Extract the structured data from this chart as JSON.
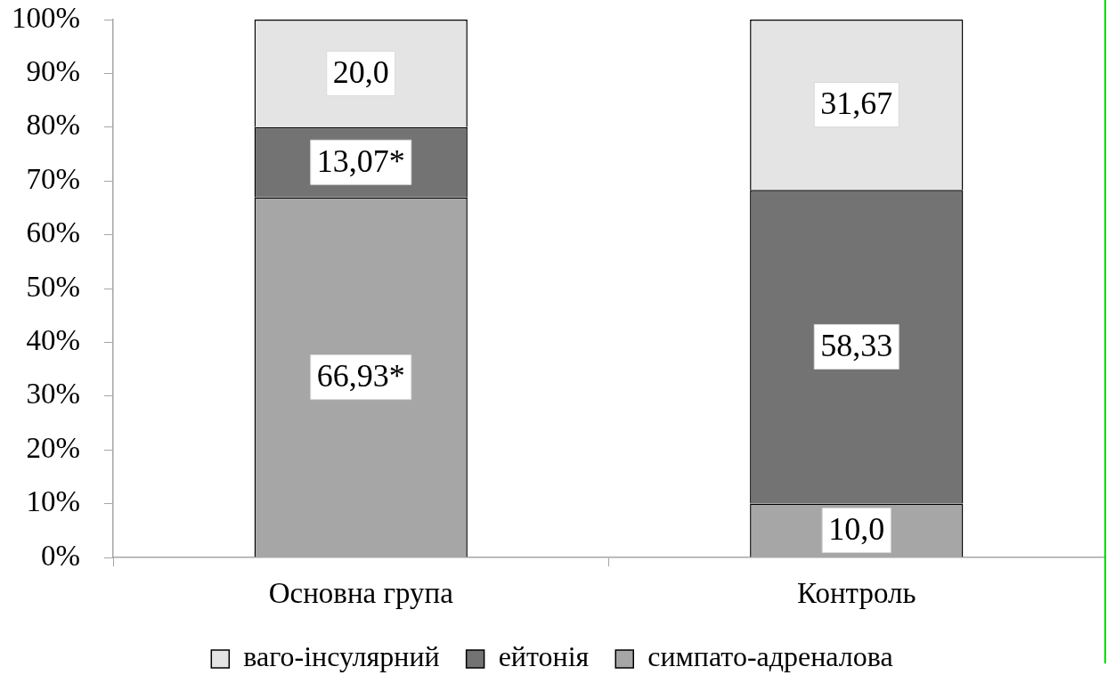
{
  "chart_data": {
    "type": "bar",
    "stacked": true,
    "categories": [
      "Основна група",
      "Контроль"
    ],
    "series": [
      {
        "name": "симпато-адреналова",
        "color": "#a6a6a6",
        "values": [
          66.93,
          10.0
        ],
        "value_labels": [
          "66,93*",
          "10,0"
        ]
      },
      {
        "name": "ейтонія",
        "color": "#737373",
        "values": [
          13.07,
          58.33
        ],
        "value_labels": [
          "13,07*",
          "58,33"
        ]
      },
      {
        "name": "ваго-інсулярний",
        "color": "#e4e4e4",
        "values": [
          20.0,
          31.67
        ],
        "value_labels": [
          "20,0",
          "31,67"
        ]
      }
    ],
    "ylim": [
      0,
      100
    ],
    "yticks": [
      {
        "value": 0,
        "label": "0%"
      },
      {
        "value": 10,
        "label": "10%"
      },
      {
        "value": 20,
        "label": "20%"
      },
      {
        "value": 30,
        "label": "30%"
      },
      {
        "value": 40,
        "label": "40%"
      },
      {
        "value": 50,
        "label": "50%"
      },
      {
        "value": 60,
        "label": "60%"
      },
      {
        "value": 70,
        "label": "70%"
      },
      {
        "value": 80,
        "label": "80%"
      },
      {
        "value": 90,
        "label": "90%"
      },
      {
        "value": 100,
        "label": "100%"
      }
    ],
    "legend": "bottom",
    "grid": false
  }
}
